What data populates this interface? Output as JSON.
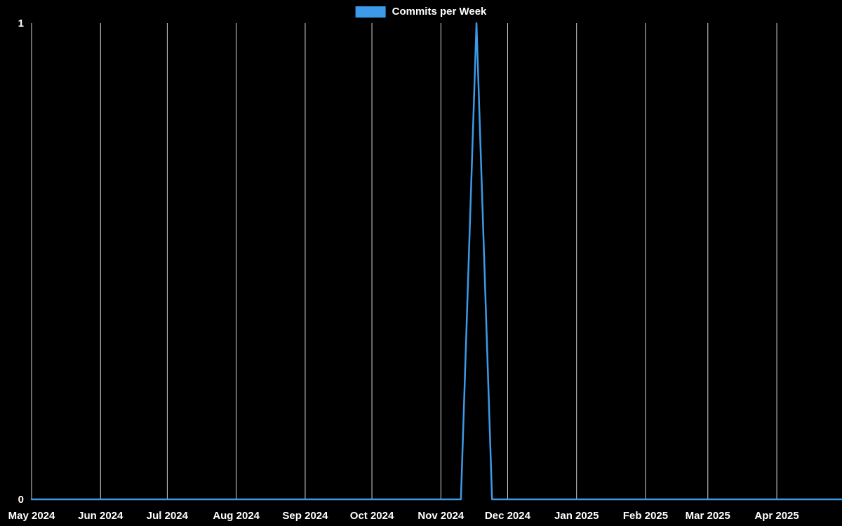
{
  "colors": {
    "background": "#000000",
    "line": "#3d9ae8",
    "grid": "#d6d6d6",
    "text": "#ffffff"
  },
  "chart_data": {
    "type": "line",
    "legend_label": "Commits per Week",
    "legend_position": "top-center",
    "grid": "vertical-only",
    "x_axis": {
      "min": "2024-05-01",
      "max": "2025-04-30",
      "ticks": [
        {
          "label": "May 2024",
          "date": "2024-05-01"
        },
        {
          "label": "Jun 2024",
          "date": "2024-06-01"
        },
        {
          "label": "Jul 2024",
          "date": "2024-07-01"
        },
        {
          "label": "Aug 2024",
          "date": "2024-08-01"
        },
        {
          "label": "Sep 2024",
          "date": "2024-09-01"
        },
        {
          "label": "Oct 2024",
          "date": "2024-10-01"
        },
        {
          "label": "Nov 2024",
          "date": "2024-11-01"
        },
        {
          "label": "Dec 2024",
          "date": "2024-12-01"
        },
        {
          "label": "Jan 2025",
          "date": "2025-01-01"
        },
        {
          "label": "Feb 2025",
          "date": "2025-02-01"
        },
        {
          "label": "Mar 2025",
          "date": "2025-03-01"
        },
        {
          "label": "Apr 2025",
          "date": "2025-04-01"
        }
      ]
    },
    "y_axis": {
      "min": 0,
      "max": 1,
      "ticks": [
        {
          "label": "0",
          "value": 0
        },
        {
          "label": "1",
          "value": 1
        }
      ]
    },
    "x": [
      "2024-04-28",
      "2024-05-05",
      "2024-05-12",
      "2024-05-19",
      "2024-05-26",
      "2024-06-02",
      "2024-06-09",
      "2024-06-16",
      "2024-06-23",
      "2024-06-30",
      "2024-07-07",
      "2024-07-14",
      "2024-07-21",
      "2024-07-28",
      "2024-08-04",
      "2024-08-11",
      "2024-08-18",
      "2024-08-25",
      "2024-09-01",
      "2024-09-08",
      "2024-09-15",
      "2024-09-22",
      "2024-09-29",
      "2024-10-06",
      "2024-10-13",
      "2024-10-20",
      "2024-10-27",
      "2024-11-03",
      "2024-11-10",
      "2024-11-17",
      "2024-11-24",
      "2024-12-01",
      "2024-12-08",
      "2024-12-15",
      "2024-12-22",
      "2024-12-29",
      "2025-01-05",
      "2025-01-12",
      "2025-01-19",
      "2025-01-26",
      "2025-02-02",
      "2025-02-09",
      "2025-02-16",
      "2025-02-23",
      "2025-03-02",
      "2025-03-09",
      "2025-03-16",
      "2025-03-23",
      "2025-03-30",
      "2025-04-06",
      "2025-04-13",
      "2025-04-20",
      "2025-04-27",
      "2025-05-04"
    ],
    "values": [
      0,
      0,
      0,
      0,
      0,
      0,
      0,
      0,
      0,
      0,
      0,
      0,
      0,
      0,
      0,
      0,
      0,
      0,
      0,
      0,
      0,
      0,
      0,
      0,
      0,
      0,
      0,
      0,
      0,
      1,
      0,
      0,
      0,
      0,
      0,
      0,
      0,
      0,
      0,
      0,
      0,
      0,
      0,
      0,
      0,
      0,
      0,
      0,
      0,
      0,
      0,
      0,
      0,
      0
    ]
  }
}
